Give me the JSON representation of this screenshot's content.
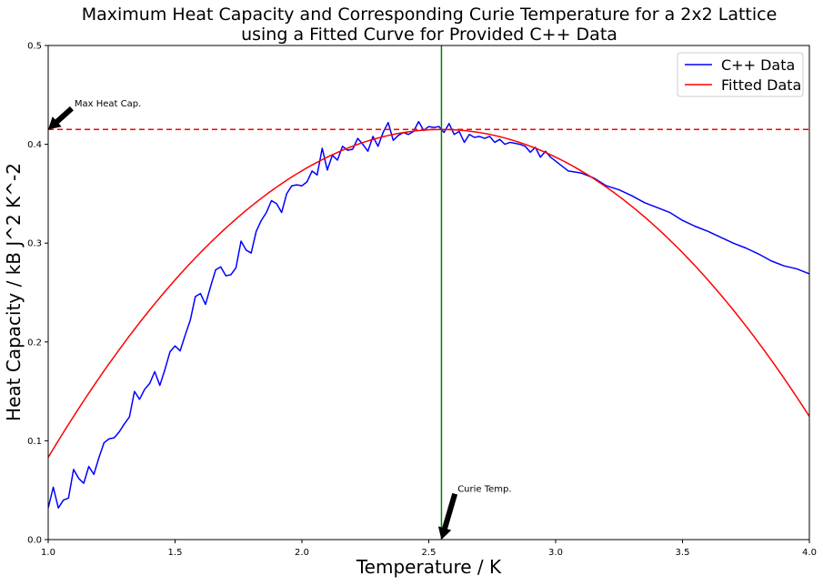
{
  "chart_data": {
    "type": "line",
    "title_line1": "Maximum Heat Capacity and Corresponding Curie Temperature for a 2x2 Lattice",
    "title_line2": "using a Fitted Curve for Provided C++ Data",
    "xlabel": "Temperature / K",
    "ylabel": "Heat Capacity / kB J^2 K^-2",
    "xlim": [
      1.0,
      4.0
    ],
    "ylim": [
      0.0,
      0.5
    ],
    "xticks": [
      1.0,
      1.5,
      2.0,
      2.5,
      3.0,
      3.5,
      4.0
    ],
    "xtick_labels": [
      "1.0",
      "1.5",
      "2.0",
      "2.5",
      "3.0",
      "3.5",
      "4.0"
    ],
    "yticks": [
      0.0,
      0.1,
      0.2,
      0.3,
      0.4,
      0.5
    ],
    "ytick_labels": [
      "0.0",
      "0.1",
      "0.2",
      "0.3",
      "0.4",
      "0.5"
    ],
    "grid": false,
    "legend_position": "top-right",
    "series": [
      {
        "name": "C++ Data",
        "color": "#0000ff",
        "x": [
          1.0,
          1.02,
          1.04,
          1.06,
          1.08,
          1.1,
          1.12,
          1.14,
          1.16,
          1.18,
          1.2,
          1.22,
          1.24,
          1.26,
          1.28,
          1.3,
          1.32,
          1.34,
          1.36,
          1.38,
          1.4,
          1.42,
          1.44,
          1.46,
          1.48,
          1.5,
          1.52,
          1.54,
          1.56,
          1.58,
          1.6,
          1.62,
          1.64,
          1.66,
          1.68,
          1.7,
          1.72,
          1.74,
          1.76,
          1.78,
          1.8,
          1.82,
          1.84,
          1.86,
          1.88,
          1.9,
          1.92,
          1.94,
          1.96,
          1.98,
          2.0,
          2.02,
          2.04,
          2.06,
          2.08,
          2.1,
          2.12,
          2.14,
          2.16,
          2.18,
          2.2,
          2.22,
          2.24,
          2.26,
          2.28,
          2.3,
          2.32,
          2.34,
          2.36,
          2.38,
          2.4,
          2.42,
          2.44,
          2.46,
          2.48,
          2.5,
          2.52,
          2.54,
          2.56,
          2.58,
          2.6,
          2.62,
          2.64,
          2.66,
          2.68,
          2.7,
          2.72,
          2.74,
          2.76,
          2.78,
          2.8,
          2.82,
          2.84,
          2.86,
          2.88,
          2.9,
          2.92,
          2.94,
          2.96,
          2.98,
          3.0,
          3.05,
          3.1,
          3.15,
          3.2,
          3.25,
          3.3,
          3.35,
          3.4,
          3.45,
          3.5,
          3.55,
          3.6,
          3.65,
          3.7,
          3.75,
          3.8,
          3.85,
          3.9,
          3.95,
          4.0
        ],
        "values": [
          0.032,
          0.053,
          0.032,
          0.04,
          0.042,
          0.071,
          0.062,
          0.057,
          0.074,
          0.066,
          0.083,
          0.098,
          0.102,
          0.103,
          0.109,
          0.117,
          0.124,
          0.15,
          0.142,
          0.152,
          0.158,
          0.17,
          0.156,
          0.172,
          0.19,
          0.196,
          0.191,
          0.207,
          0.222,
          0.246,
          0.249,
          0.238,
          0.256,
          0.273,
          0.276,
          0.267,
          0.268,
          0.275,
          0.302,
          0.293,
          0.29,
          0.312,
          0.323,
          0.331,
          0.343,
          0.34,
          0.331,
          0.35,
          0.358,
          0.359,
          0.358,
          0.362,
          0.373,
          0.369,
          0.396,
          0.374,
          0.389,
          0.384,
          0.398,
          0.394,
          0.395,
          0.406,
          0.4,
          0.393,
          0.408,
          0.398,
          0.412,
          0.422,
          0.404,
          0.409,
          0.412,
          0.41,
          0.413,
          0.423,
          0.414,
          0.418,
          0.417,
          0.418,
          0.412,
          0.421,
          0.41,
          0.413,
          0.402,
          0.41,
          0.407,
          0.408,
          0.406,
          0.408,
          0.402,
          0.405,
          0.4,
          0.402,
          0.401,
          0.4,
          0.398,
          0.392,
          0.397,
          0.387,
          0.393,
          0.387,
          0.383,
          0.373,
          0.371,
          0.366,
          0.358,
          0.354,
          0.348,
          0.341,
          0.336,
          0.331,
          0.323,
          0.317,
          0.312,
          0.306,
          0.3,
          0.295,
          0.289,
          0.282,
          0.277,
          0.274,
          0.269
        ]
      },
      {
        "name": "Fitted Data",
        "color": "#ff0000",
        "fit": {
          "model": "quadratic",
          "peak_x": 2.55,
          "peak_y": 0.415,
          "curvature": 0.1381
        }
      }
    ],
    "annotations": [
      {
        "name": "max-heat",
        "text": "Max Heat Cap.",
        "text_x": 1.1,
        "text_y": 0.44,
        "arrow_to_x": 1.0,
        "arrow_to_y": 0.415
      },
      {
        "name": "curie-temp",
        "text": "Curie Temp.",
        "text_x": 2.61,
        "text_y": 0.05,
        "arrow_to_x": 2.55,
        "arrow_to_y": 0.0
      }
    ],
    "reference_lines": {
      "horizontal": {
        "y": 0.415,
        "color": "#ff0000",
        "style": "dashed"
      },
      "vertical": {
        "x": 2.55,
        "color": "#008000",
        "style": "solid"
      }
    }
  }
}
